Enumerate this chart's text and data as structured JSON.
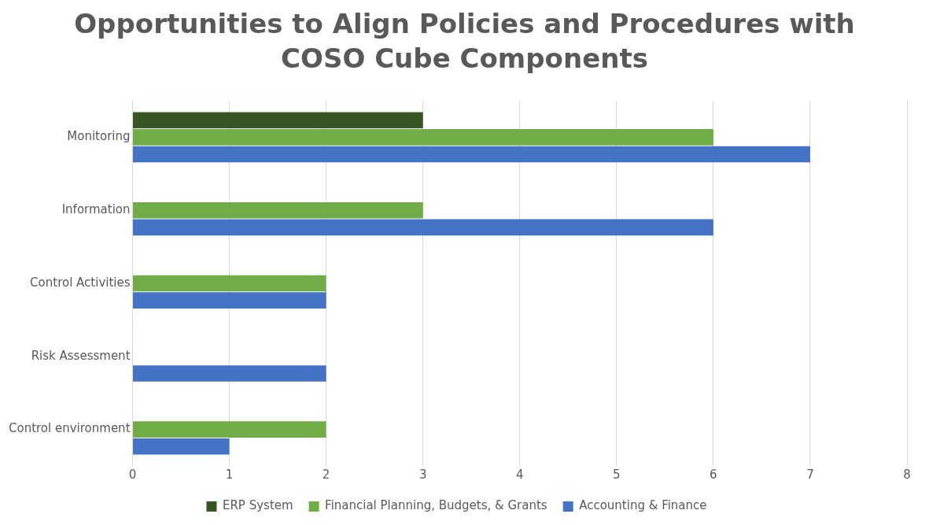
{
  "chart_data": {
    "type": "bar",
    "orientation": "horizontal",
    "title": "Opportunities to Align Policies and Procedures with COSO Cube Components",
    "categories": [
      "Monitoring",
      "Information",
      "Control Activities",
      "Risk Assessment",
      "Control environment"
    ],
    "series": [
      {
        "name": "ERP System",
        "color": "#375623",
        "values": [
          3,
          null,
          null,
          null,
          null
        ]
      },
      {
        "name": "Financial Planning, Budgets, & Grants",
        "color": "#70ad47",
        "values": [
          6,
          3,
          2,
          null,
          2
        ]
      },
      {
        "name": "Accounting & Finance",
        "color": "#4472c4",
        "values": [
          7,
          6,
          2,
          2,
          1
        ]
      }
    ],
    "xlim": [
      0,
      8
    ],
    "xticks": [
      0,
      1,
      2,
      3,
      4,
      5,
      6,
      7,
      8
    ],
    "grid": "x",
    "legend": "bottom"
  }
}
